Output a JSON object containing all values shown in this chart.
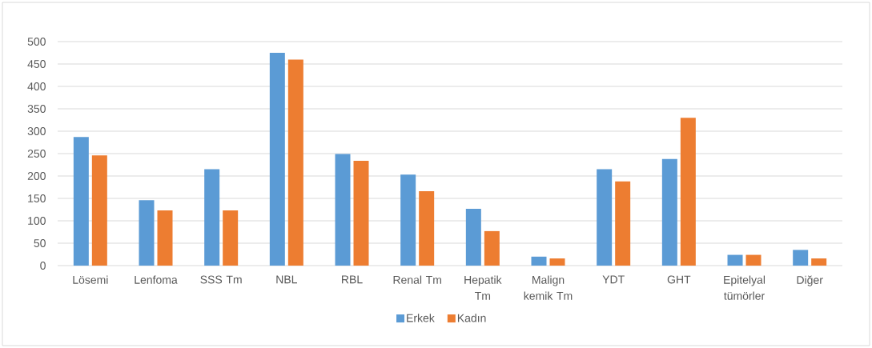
{
  "chart_data": {
    "type": "bar",
    "categories": [
      "Lösemi",
      "Lenfoma",
      "SSS Tm",
      "NBL",
      "RBL",
      "Renal Tm",
      "Hepatik Tm",
      "Malign kemik Tm",
      "YDT",
      "GHT",
      "Epitelyal tümörler",
      "Diğer"
    ],
    "series": [
      {
        "name": "Erkek",
        "color": "#5b9bd5",
        "values": [
          287,
          146,
          215,
          475,
          249,
          203,
          127,
          20,
          215,
          238,
          24,
          35
        ]
      },
      {
        "name": "Kadın",
        "color": "#ed7d31",
        "values": [
          246,
          123,
          123,
          460,
          234,
          166,
          77,
          16,
          188,
          330,
          24,
          16
        ]
      }
    ],
    "ylim": [
      0,
      500
    ],
    "yticks": [
      0,
      50,
      100,
      150,
      200,
      250,
      300,
      350,
      400,
      450,
      500
    ],
    "grid": "y",
    "legend": "bottom"
  }
}
